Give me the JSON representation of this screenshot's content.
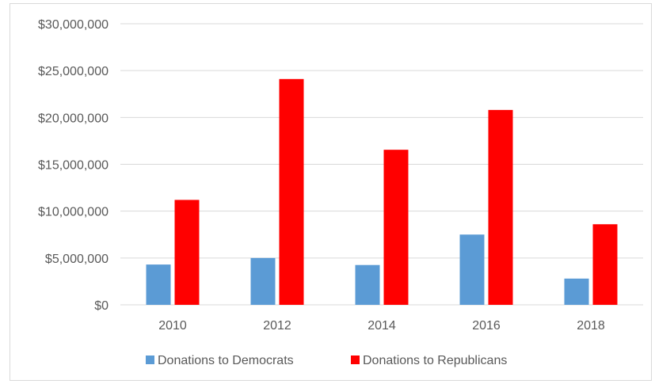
{
  "chart_data": {
    "type": "bar",
    "title": "",
    "xlabel": "",
    "ylabel": "",
    "categories": [
      "2010",
      "2012",
      "2014",
      "2016",
      "2018"
    ],
    "series": [
      {
        "name": "Donations to Democrats",
        "color": "#5b9bd5",
        "values": [
          4300000,
          5000000,
          4250000,
          7500000,
          2800000
        ]
      },
      {
        "name": "Donations to Republicans",
        "color": "#ff0000",
        "values": [
          11200000,
          24100000,
          16550000,
          20800000,
          8600000
        ]
      }
    ],
    "ylim": [
      0,
      30000000
    ],
    "y_ticks": [
      0,
      5000000,
      10000000,
      15000000,
      20000000,
      25000000,
      30000000
    ],
    "y_tick_labels": [
      "$0",
      "$5,000,000",
      "$10,000,000",
      "$15,000,000",
      "$20,000,000",
      "$25,000,000",
      "$30,000,000"
    ],
    "grid": true,
    "gridline_color": "#d9d9d9",
    "legend_position": "bottom"
  }
}
